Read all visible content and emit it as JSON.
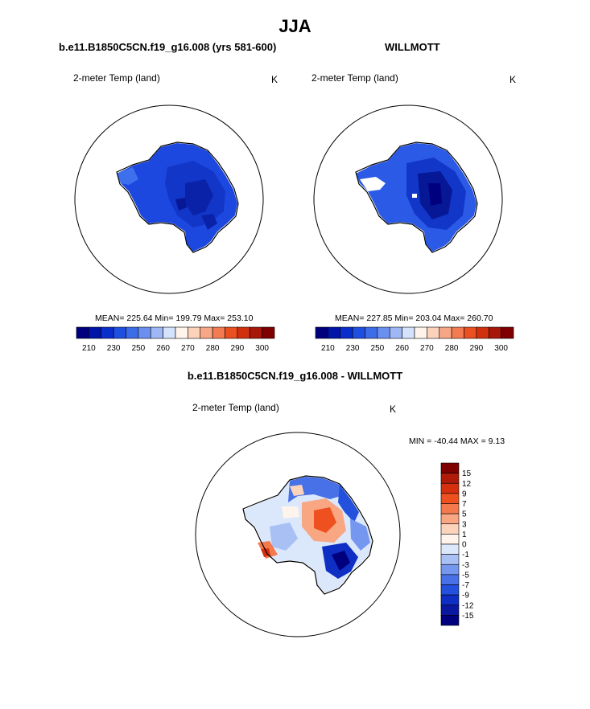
{
  "page_title": "JJA",
  "panels": [
    {
      "title": "b.e11.B1850C5CN.f19_g16.008 (yrs 581-600)",
      "variable": "2-meter Temp (land)",
      "units": "K",
      "stats": "MEAN= 225.64  Min= 199.79  Max= 253.10"
    },
    {
      "title": "WILLMOTT",
      "variable": "2-meter Temp (land)",
      "units": "K",
      "stats": "MEAN= 227.85  Min= 203.04  Max= 260.70"
    },
    {
      "title": "b.e11.B1850C5CN.f19_g16.008 - WILLMOTT",
      "variable": "2-meter Temp (land)",
      "units": "K",
      "stats": "MIN = -40.44 MAX =   9.13"
    }
  ],
  "chart_data": [
    {
      "type": "heatmap",
      "title": "b.e11.B1850C5CN.f19_g16.008 (yrs 581-600)",
      "variable": "2-meter Temp (land)",
      "units": "K",
      "mean": 225.64,
      "min": 199.79,
      "max": 253.1,
      "colorbar": {
        "orientation": "horizontal",
        "tick_labels": [
          "210",
          "230",
          "250",
          "260",
          "270",
          "280",
          "290",
          "300"
        ],
        "colors": [
          "#00007f",
          "#0014a8",
          "#0a2ecc",
          "#1f4fe0",
          "#3c6ce8",
          "#6b8fef",
          "#9fb7f5",
          "#d4e2fb",
          "#fff4ec",
          "#fcd2bb",
          "#f7a785",
          "#f27b52",
          "#eb5020",
          "#d1300e",
          "#a8180a",
          "#7f0000"
        ]
      }
    },
    {
      "type": "heatmap",
      "title": "WILLMOTT",
      "variable": "2-meter Temp (land)",
      "units": "K",
      "mean": 227.85,
      "min": 203.04,
      "max": 260.7,
      "colorbar": {
        "orientation": "horizontal",
        "tick_labels": [
          "210",
          "230",
          "250",
          "260",
          "270",
          "280",
          "290",
          "300"
        ],
        "colors": [
          "#00007f",
          "#0014a8",
          "#0a2ecc",
          "#1f4fe0",
          "#3c6ce8",
          "#6b8fef",
          "#9fb7f5",
          "#d4e2fb",
          "#fff4ec",
          "#fcd2bb",
          "#f7a785",
          "#f27b52",
          "#eb5020",
          "#d1300e",
          "#a8180a",
          "#7f0000"
        ]
      }
    },
    {
      "type": "heatmap",
      "title": "b.e11.B1850C5CN.f19_g16.008 - WILLMOTT",
      "variable": "2-meter Temp (land)",
      "units": "K",
      "min": -40.44,
      "max": 9.13,
      "colorbar": {
        "orientation": "vertical",
        "tick_labels": [
          "15",
          "12",
          "9",
          "7",
          "5",
          "3",
          "1",
          "0",
          "-1",
          "-3",
          "-5",
          "-7",
          "-9",
          "-12",
          "-15"
        ],
        "colors": [
          "#7f0000",
          "#b01a08",
          "#d5300e",
          "#ee5020",
          "#f47a4e",
          "#f9a683",
          "#fcd3bb",
          "#fff4ec",
          "#dbe7fb",
          "#a9c0f5",
          "#7597ef",
          "#4870e7",
          "#2350dc",
          "#0f2ec4",
          "#0a18a0",
          "#00007f"
        ]
      }
    }
  ]
}
